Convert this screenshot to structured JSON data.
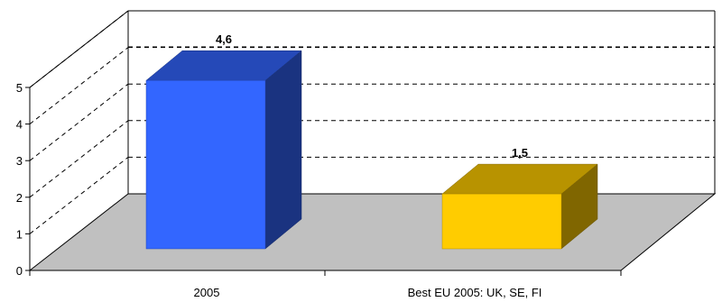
{
  "chart_data": {
    "type": "bar",
    "style": "3d",
    "categories": [
      "2005",
      "Best EU 2005: UK, SE, FI"
    ],
    "values": [
      4.6,
      1.5
    ],
    "value_labels": [
      "4,6",
      "1,5"
    ],
    "yticks": [
      "0",
      "1",
      "2",
      "3",
      "4",
      "5"
    ],
    "ylim": [
      0,
      5
    ],
    "grid": true,
    "legend": "none",
    "colors": {
      "bars": [
        "#3366FF",
        "#FFCC00"
      ],
      "floor": "#C0C0C0"
    }
  }
}
